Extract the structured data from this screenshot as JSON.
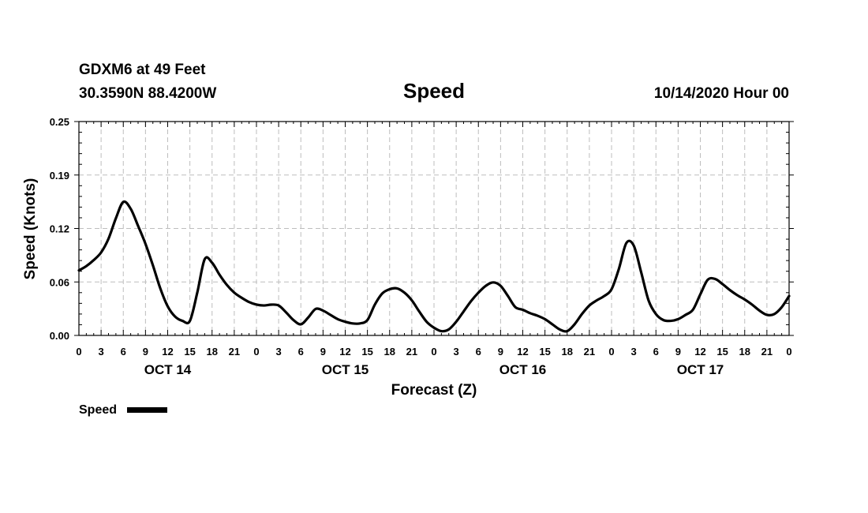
{
  "header": {
    "station": "GDXM6 at 49 Feet",
    "coords": "30.3590N 88.4200W",
    "title": "Speed",
    "run": "10/14/2020 Hour 00"
  },
  "chart_data": {
    "type": "line",
    "title": "Speed",
    "xlabel": "Forecast (Z)",
    "ylabel": "Speed (Knots)",
    "ylim": [
      0,
      0.25
    ],
    "xlim": [
      0,
      96
    ],
    "grid": true,
    "legend_position": "bottom-left",
    "y_ticks": [
      "0.00",
      "0.06",
      "0.12",
      "0.19",
      "0.25"
    ],
    "y_tick_values": [
      0,
      0.0625,
      0.125,
      0.1875,
      0.25
    ],
    "x_tick_labels": [
      "0",
      "3",
      "6",
      "9",
      "12",
      "15",
      "18",
      "21",
      "0",
      "3",
      "6",
      "9",
      "12",
      "15",
      "18",
      "21",
      "0",
      "3",
      "6",
      "9",
      "12",
      "15",
      "18",
      "21",
      "0",
      "3",
      "6",
      "9",
      "12",
      "15",
      "18",
      "21",
      "0"
    ],
    "day_labels": [
      {
        "label": "OCT 14",
        "hour": 12
      },
      {
        "label": "OCT 15",
        "hour": 36
      },
      {
        "label": "OCT 16",
        "hour": 60
      },
      {
        "label": "OCT 17",
        "hour": 84
      }
    ],
    "series": [
      {
        "name": "Speed",
        "color": "#000000",
        "x": [
          0,
          1,
          2,
          3,
          4,
          5,
          6,
          7,
          8,
          9,
          10,
          11,
          12,
          13,
          14,
          15,
          16,
          17,
          18,
          19,
          20,
          21,
          22,
          23,
          24,
          25,
          26,
          27,
          28,
          29,
          30,
          31,
          32,
          33,
          34,
          35,
          36,
          37,
          38,
          39,
          40,
          41,
          42,
          43,
          44,
          45,
          46,
          47,
          48,
          49,
          50,
          51,
          52,
          53,
          54,
          55,
          56,
          57,
          58,
          59,
          60,
          61,
          62,
          63,
          64,
          65,
          66,
          67,
          68,
          69,
          70,
          71,
          72,
          73,
          74,
          75,
          76,
          77,
          78,
          79,
          80,
          81,
          82,
          83,
          84,
          85,
          86,
          87,
          88,
          89,
          90,
          91,
          92,
          93,
          94,
          95,
          96
        ],
        "values": [
          0.076,
          0.081,
          0.088,
          0.097,
          0.113,
          0.137,
          0.156,
          0.148,
          0.128,
          0.107,
          0.082,
          0.055,
          0.034,
          0.022,
          0.017,
          0.017,
          0.05,
          0.089,
          0.085,
          0.071,
          0.059,
          0.05,
          0.044,
          0.039,
          0.036,
          0.035,
          0.036,
          0.035,
          0.027,
          0.018,
          0.013,
          0.021,
          0.031,
          0.029,
          0.024,
          0.019,
          0.016,
          0.014,
          0.014,
          0.018,
          0.036,
          0.049,
          0.054,
          0.055,
          0.05,
          0.041,
          0.028,
          0.016,
          0.009,
          0.005,
          0.007,
          0.016,
          0.028,
          0.04,
          0.05,
          0.058,
          0.062,
          0.058,
          0.046,
          0.033,
          0.03,
          0.026,
          0.023,
          0.019,
          0.013,
          0.007,
          0.005,
          0.013,
          0.025,
          0.035,
          0.041,
          0.046,
          0.054,
          0.078,
          0.108,
          0.105,
          0.074,
          0.041,
          0.025,
          0.018,
          0.017,
          0.019,
          0.024,
          0.03,
          0.048,
          0.065,
          0.066,
          0.06,
          0.053,
          0.047,
          0.042,
          0.036,
          0.029,
          0.024,
          0.025,
          0.033,
          0.046
        ]
      }
    ]
  },
  "legend": {
    "label": "Speed"
  }
}
